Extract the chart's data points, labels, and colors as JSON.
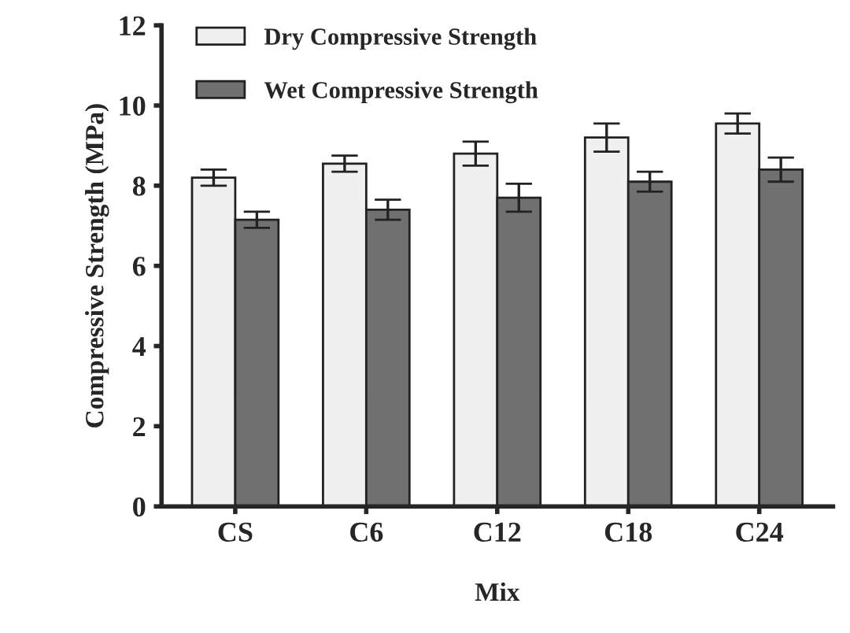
{
  "chart_data": {
    "type": "bar",
    "xlabel": "Mix",
    "ylabel": "Compressive Strength (MPa)",
    "categories": [
      "CS",
      "C6",
      "C12",
      "C18",
      "C24"
    ],
    "series": [
      {
        "name": "Dry Compressive Strength",
        "color": "#f0f0f0",
        "values": [
          8.2,
          8.55,
          8.8,
          9.2,
          9.55
        ],
        "errors": [
          0.2,
          0.2,
          0.3,
          0.35,
          0.25
        ]
      },
      {
        "name": "Wet Compressive Strength",
        "color": "#707070",
        "values": [
          7.15,
          7.4,
          7.7,
          8.1,
          8.4
        ],
        "errors": [
          0.2,
          0.25,
          0.35,
          0.25,
          0.3
        ]
      }
    ],
    "ylim": [
      0,
      12
    ],
    "yticks": [
      0,
      2,
      4,
      6,
      8,
      10,
      12
    ],
    "grid": false,
    "legend": "top left"
  }
}
